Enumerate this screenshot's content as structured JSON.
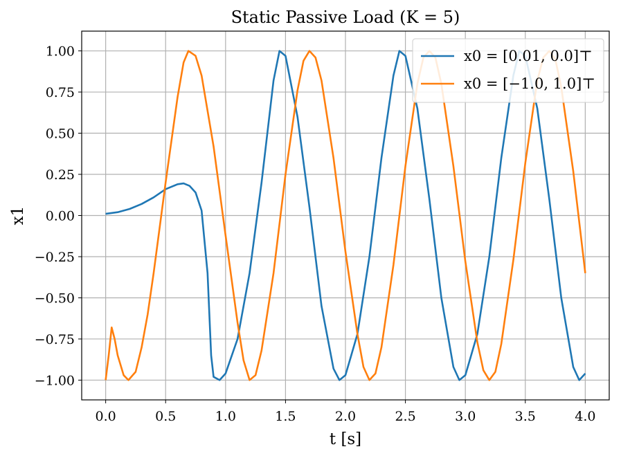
{
  "chart_data": {
    "type": "line",
    "title": "Static Passive Load (K = 5)",
    "xlabel": "t [s]",
    "ylabel": "x1",
    "xlim": [
      -0.2,
      4.2
    ],
    "ylim": [
      -1.12,
      1.12
    ],
    "xticks": [
      0.0,
      0.5,
      1.0,
      1.5,
      2.0,
      2.5,
      3.0,
      3.5,
      4.0
    ],
    "xtick_labels": [
      "0.0",
      "0.5",
      "1.0",
      "1.5",
      "2.0",
      "2.5",
      "3.0",
      "3.5",
      "4.0"
    ],
    "yticks": [
      1.0,
      0.75,
      0.5,
      0.25,
      0.0,
      -0.25,
      -0.5,
      -0.75,
      -1.0
    ],
    "ytick_labels": [
      "1.00",
      "0.75",
      "0.50",
      "0.25",
      "0.00",
      "−0.25",
      "−0.50",
      "−0.75",
      "−1.00"
    ],
    "grid": true,
    "legend_position": "top-right",
    "series": [
      {
        "name": "x0 = [0.01, 0.0]⊤",
        "color": "#1f77b4",
        "points": [
          [
            0.0,
            0.01
          ],
          [
            0.1,
            0.02
          ],
          [
            0.2,
            0.04
          ],
          [
            0.3,
            0.07
          ],
          [
            0.4,
            0.11
          ],
          [
            0.5,
            0.16
          ],
          [
            0.6,
            0.19
          ],
          [
            0.65,
            0.195
          ],
          [
            0.7,
            0.18
          ],
          [
            0.75,
            0.14
          ],
          [
            0.8,
            0.03
          ],
          [
            0.85,
            -0.35
          ],
          [
            0.88,
            -0.85
          ],
          [
            0.9,
            -0.98
          ],
          [
            0.95,
            -1.0
          ],
          [
            1.0,
            -0.96
          ],
          [
            1.1,
            -0.75
          ],
          [
            1.2,
            -0.35
          ],
          [
            1.3,
            0.2
          ],
          [
            1.4,
            0.82
          ],
          [
            1.45,
            1.0
          ],
          [
            1.5,
            0.97
          ],
          [
            1.6,
            0.6
          ],
          [
            1.7,
            0.05
          ],
          [
            1.8,
            -0.55
          ],
          [
            1.9,
            -0.93
          ],
          [
            1.95,
            -1.0
          ],
          [
            2.0,
            -0.97
          ],
          [
            2.1,
            -0.72
          ],
          [
            2.2,
            -0.25
          ],
          [
            2.3,
            0.35
          ],
          [
            2.4,
            0.85
          ],
          [
            2.45,
            1.0
          ],
          [
            2.5,
            0.97
          ],
          [
            2.6,
            0.65
          ],
          [
            2.7,
            0.1
          ],
          [
            2.8,
            -0.5
          ],
          [
            2.9,
            -0.92
          ],
          [
            2.95,
            -1.0
          ],
          [
            3.0,
            -0.97
          ],
          [
            3.1,
            -0.72
          ],
          [
            3.2,
            -0.25
          ],
          [
            3.3,
            0.35
          ],
          [
            3.4,
            0.85
          ],
          [
            3.45,
            1.0
          ],
          [
            3.5,
            0.97
          ],
          [
            3.6,
            0.65
          ],
          [
            3.7,
            0.1
          ],
          [
            3.8,
            -0.5
          ],
          [
            3.9,
            -0.92
          ],
          [
            3.95,
            -1.0
          ],
          [
            4.0,
            -0.96
          ]
        ]
      },
      {
        "name": "x0 = [−1.0, 1.0]⊤",
        "color": "#ff7f0e",
        "points": [
          [
            0.0,
            -1.0
          ],
          [
            0.025,
            -0.85
          ],
          [
            0.05,
            -0.68
          ],
          [
            0.075,
            -0.75
          ],
          [
            0.1,
            -0.85
          ],
          [
            0.15,
            -0.97
          ],
          [
            0.19,
            -1.0
          ],
          [
            0.25,
            -0.95
          ],
          [
            0.3,
            -0.8
          ],
          [
            0.35,
            -0.6
          ],
          [
            0.4,
            -0.35
          ],
          [
            0.5,
            0.2
          ],
          [
            0.6,
            0.72
          ],
          [
            0.65,
            0.93
          ],
          [
            0.69,
            1.0
          ],
          [
            0.75,
            0.97
          ],
          [
            0.8,
            0.85
          ],
          [
            0.9,
            0.42
          ],
          [
            1.0,
            -0.12
          ],
          [
            1.1,
            -0.65
          ],
          [
            1.15,
            -0.88
          ],
          [
            1.2,
            -1.0
          ],
          [
            1.25,
            -0.97
          ],
          [
            1.3,
            -0.82
          ],
          [
            1.4,
            -0.35
          ],
          [
            1.5,
            0.25
          ],
          [
            1.6,
            0.76
          ],
          [
            1.65,
            0.94
          ],
          [
            1.7,
            1.0
          ],
          [
            1.75,
            0.96
          ],
          [
            1.8,
            0.82
          ],
          [
            1.9,
            0.35
          ],
          [
            2.0,
            -0.22
          ],
          [
            2.1,
            -0.72
          ],
          [
            2.15,
            -0.92
          ],
          [
            2.2,
            -1.0
          ],
          [
            2.25,
            -0.96
          ],
          [
            2.3,
            -0.8
          ],
          [
            2.4,
            -0.3
          ],
          [
            2.5,
            0.3
          ],
          [
            2.6,
            0.8
          ],
          [
            2.65,
            0.96
          ],
          [
            2.7,
            1.0
          ],
          [
            2.75,
            0.96
          ],
          [
            2.8,
            0.8
          ],
          [
            2.9,
            0.3
          ],
          [
            3.0,
            -0.28
          ],
          [
            3.1,
            -0.77
          ],
          [
            3.15,
            -0.94
          ],
          [
            3.2,
            -1.0
          ],
          [
            3.25,
            -0.95
          ],
          [
            3.3,
            -0.78
          ],
          [
            3.4,
            -0.27
          ],
          [
            3.5,
            0.32
          ],
          [
            3.6,
            0.82
          ],
          [
            3.65,
            0.96
          ],
          [
            3.7,
            1.0
          ],
          [
            3.75,
            0.95
          ],
          [
            3.8,
            0.78
          ],
          [
            3.9,
            0.27
          ],
          [
            4.0,
            -0.35
          ]
        ]
      }
    ]
  }
}
